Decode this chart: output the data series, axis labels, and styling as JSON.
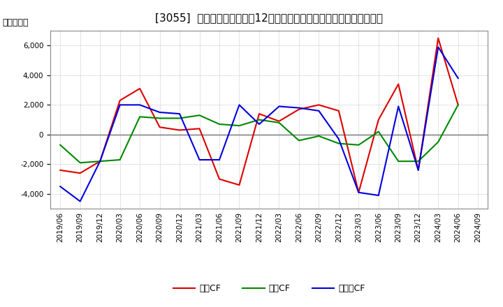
{
  "title": "[3055]  キャッシュフローの12か月移動合計の対前年同期増減額の推移",
  "ylabel": "（百万円）",
  "x_labels": [
    "2019/06",
    "2019/09",
    "2019/12",
    "2020/03",
    "2020/06",
    "2020/09",
    "2020/12",
    "2021/03",
    "2021/06",
    "2021/09",
    "2021/12",
    "2022/03",
    "2022/06",
    "2022/09",
    "2022/12",
    "2023/03",
    "2023/06",
    "2023/09",
    "2023/12",
    "2024/03",
    "2024/06",
    "2024/09"
  ],
  "series_order": [
    "営業CF",
    "投資CF",
    "フリーCF"
  ],
  "series": {
    "営業CF": {
      "color": "#dd0000",
      "values": [
        -2400,
        -2600,
        -1800,
        2300,
        3100,
        500,
        300,
        400,
        -3000,
        -3400,
        1400,
        900,
        1700,
        2000,
        1600,
        -3900,
        1000,
        3400,
        -2400,
        6500,
        2000,
        null
      ]
    },
    "投資CF": {
      "color": "#008800",
      "values": [
        -700,
        -1900,
        -1800,
        -1700,
        1200,
        1100,
        1100,
        1300,
        700,
        600,
        1000,
        800,
        -400,
        -100,
        -600,
        -700,
        200,
        -1800,
        -1800,
        -500,
        2000,
        null
      ]
    },
    "フリーCF": {
      "color": "#0000dd",
      "values": [
        -3500,
        -4500,
        -1800,
        2000,
        2000,
        1500,
        1400,
        -1700,
        -1700,
        2000,
        700,
        1900,
        1800,
        1600,
        -300,
        -3900,
        -4100,
        1900,
        -2400,
        5900,
        3800,
        null
      ]
    }
  },
  "ylim": [
    -5000,
    7000
  ],
  "yticks": [
    -4000,
    -2000,
    0,
    2000,
    4000,
    6000
  ],
  "background_color": "#ffffff",
  "plot_bg_color": "#ffffff",
  "grid_color": "#aaaaaa",
  "title_fontsize": 11,
  "label_fontsize": 9,
  "tick_fontsize": 7.5,
  "legend_fontsize": 9
}
